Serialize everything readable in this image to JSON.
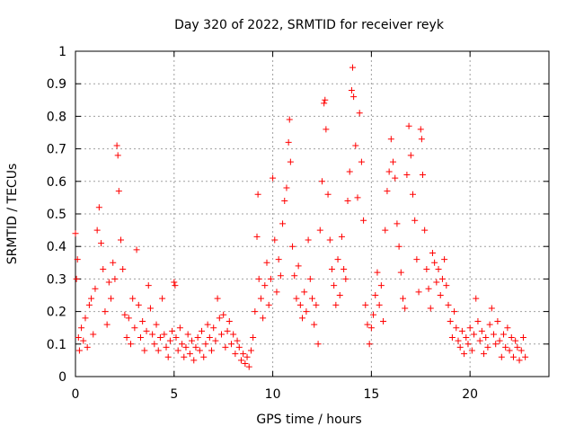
{
  "chart_data": {
    "type": "scatter",
    "title": "Day 320 of 2022, SRMTID for receiver reyk",
    "xlabel": "GPS time / hours",
    "ylabel": "SRMTID / TECUs",
    "xlim": [
      0,
      24
    ],
    "ylim": [
      0,
      1
    ],
    "xticks": [
      0,
      5,
      10,
      15,
      20
    ],
    "xtick_labels": [
      "0",
      "5",
      "10",
      "15",
      "20"
    ],
    "yticks": [
      0,
      0.1,
      0.2,
      0.3,
      0.4,
      0.5,
      0.6,
      0.7,
      0.8,
      0.9,
      1
    ],
    "ytick_labels": [
      "0",
      "0.1",
      "0.2",
      "0.3",
      "0.4",
      "0.5",
      "0.6",
      "0.7",
      "0.8",
      "0.9",
      "1"
    ],
    "grid": true,
    "marker": "+",
    "color": "#ff0000",
    "series": [
      {
        "name": "SRMTID",
        "points": [
          [
            0.0,
            0.44
          ],
          [
            0.05,
            0.3
          ],
          [
            0.1,
            0.36
          ],
          [
            0.15,
            0.12
          ],
          [
            0.2,
            0.08
          ],
          [
            0.3,
            0.15
          ],
          [
            0.4,
            0.11
          ],
          [
            0.5,
            0.18
          ],
          [
            0.6,
            0.09
          ],
          [
            0.7,
            0.22
          ],
          [
            0.8,
            0.24
          ],
          [
            0.9,
            0.13
          ],
          [
            1.0,
            0.27
          ],
          [
            1.1,
            0.45
          ],
          [
            1.2,
            0.52
          ],
          [
            1.3,
            0.41
          ],
          [
            1.4,
            0.33
          ],
          [
            1.5,
            0.2
          ],
          [
            1.6,
            0.16
          ],
          [
            1.7,
            0.29
          ],
          [
            1.8,
            0.24
          ],
          [
            1.9,
            0.35
          ],
          [
            2.0,
            0.3
          ],
          [
            2.1,
            0.71
          ],
          [
            2.15,
            0.68
          ],
          [
            2.2,
            0.57
          ],
          [
            2.3,
            0.42
          ],
          [
            2.4,
            0.33
          ],
          [
            2.5,
            0.19
          ],
          [
            2.6,
            0.12
          ],
          [
            2.7,
            0.18
          ],
          [
            2.8,
            0.1
          ],
          [
            2.9,
            0.24
          ],
          [
            3.0,
            0.15
          ],
          [
            3.1,
            0.39
          ],
          [
            3.2,
            0.22
          ],
          [
            3.3,
            0.12
          ],
          [
            3.4,
            0.17
          ],
          [
            3.5,
            0.08
          ],
          [
            3.6,
            0.14
          ],
          [
            3.7,
            0.28
          ],
          [
            3.8,
            0.21
          ],
          [
            3.9,
            0.13
          ],
          [
            4.0,
            0.1
          ],
          [
            4.1,
            0.16
          ],
          [
            4.2,
            0.08
          ],
          [
            4.3,
            0.12
          ],
          [
            4.4,
            0.24
          ],
          [
            4.5,
            0.13
          ],
          [
            4.6,
            0.09
          ],
          [
            4.7,
            0.06
          ],
          [
            4.8,
            0.11
          ],
          [
            4.9,
            0.14
          ],
          [
            5.0,
            0.29
          ],
          [
            5.05,
            0.28
          ],
          [
            5.1,
            0.12
          ],
          [
            5.2,
            0.08
          ],
          [
            5.3,
            0.15
          ],
          [
            5.4,
            0.1
          ],
          [
            5.5,
            0.06
          ],
          [
            5.6,
            0.09
          ],
          [
            5.7,
            0.13
          ],
          [
            5.8,
            0.07
          ],
          [
            5.9,
            0.11
          ],
          [
            6.0,
            0.05
          ],
          [
            6.1,
            0.09
          ],
          [
            6.2,
            0.12
          ],
          [
            6.3,
            0.08
          ],
          [
            6.4,
            0.14
          ],
          [
            6.5,
            0.06
          ],
          [
            6.6,
            0.1
          ],
          [
            6.7,
            0.16
          ],
          [
            6.8,
            0.12
          ],
          [
            6.9,
            0.08
          ],
          [
            7.0,
            0.15
          ],
          [
            7.1,
            0.11
          ],
          [
            7.2,
            0.24
          ],
          [
            7.3,
            0.18
          ],
          [
            7.4,
            0.13
          ],
          [
            7.5,
            0.19
          ],
          [
            7.6,
            0.09
          ],
          [
            7.7,
            0.14
          ],
          [
            7.8,
            0.17
          ],
          [
            7.9,
            0.1
          ],
          [
            8.0,
            0.13
          ],
          [
            8.1,
            0.07
          ],
          [
            8.2,
            0.11
          ],
          [
            8.3,
            0.09
          ],
          [
            8.4,
            0.05
          ],
          [
            8.5,
            0.07
          ],
          [
            8.6,
            0.04
          ],
          [
            8.7,
            0.06
          ],
          [
            8.8,
            0.03
          ],
          [
            8.9,
            0.08
          ],
          [
            9.0,
            0.12
          ],
          [
            9.1,
            0.2
          ],
          [
            9.2,
            0.43
          ],
          [
            9.25,
            0.56
          ],
          [
            9.3,
            0.3
          ],
          [
            9.4,
            0.24
          ],
          [
            9.5,
            0.18
          ],
          [
            9.6,
            0.28
          ],
          [
            9.7,
            0.35
          ],
          [
            9.8,
            0.22
          ],
          [
            9.9,
            0.3
          ],
          [
            10.0,
            0.61
          ],
          [
            10.1,
            0.42
          ],
          [
            10.2,
            0.26
          ],
          [
            10.3,
            0.36
          ],
          [
            10.4,
            0.31
          ],
          [
            10.5,
            0.47
          ],
          [
            10.6,
            0.54
          ],
          [
            10.7,
            0.58
          ],
          [
            10.8,
            0.72
          ],
          [
            10.85,
            0.79
          ],
          [
            10.9,
            0.66
          ],
          [
            11.0,
            0.4
          ],
          [
            11.1,
            0.31
          ],
          [
            11.2,
            0.24
          ],
          [
            11.3,
            0.34
          ],
          [
            11.4,
            0.22
          ],
          [
            11.5,
            0.18
          ],
          [
            11.6,
            0.26
          ],
          [
            11.7,
            0.2
          ],
          [
            11.8,
            0.42
          ],
          [
            11.9,
            0.3
          ],
          [
            12.0,
            0.24
          ],
          [
            12.1,
            0.16
          ],
          [
            12.2,
            0.22
          ],
          [
            12.3,
            0.1
          ],
          [
            12.4,
            0.45
          ],
          [
            12.5,
            0.6
          ],
          [
            12.6,
            0.84
          ],
          [
            12.65,
            0.85
          ],
          [
            12.7,
            0.76
          ],
          [
            12.8,
            0.56
          ],
          [
            12.9,
            0.42
          ],
          [
            13.0,
            0.33
          ],
          [
            13.1,
            0.28
          ],
          [
            13.2,
            0.22
          ],
          [
            13.3,
            0.36
          ],
          [
            13.4,
            0.25
          ],
          [
            13.5,
            0.43
          ],
          [
            13.6,
            0.33
          ],
          [
            13.7,
            0.3
          ],
          [
            13.8,
            0.54
          ],
          [
            13.9,
            0.63
          ],
          [
            14.0,
            0.88
          ],
          [
            14.05,
            0.95
          ],
          [
            14.1,
            0.86
          ],
          [
            14.2,
            0.71
          ],
          [
            14.3,
            0.55
          ],
          [
            14.4,
            0.81
          ],
          [
            14.5,
            0.66
          ],
          [
            14.6,
            0.48
          ],
          [
            14.7,
            0.22
          ],
          [
            14.8,
            0.16
          ],
          [
            14.9,
            0.1
          ],
          [
            15.0,
            0.15
          ],
          [
            15.1,
            0.19
          ],
          [
            15.2,
            0.25
          ],
          [
            15.3,
            0.32
          ],
          [
            15.4,
            0.22
          ],
          [
            15.5,
            0.28
          ],
          [
            15.6,
            0.17
          ],
          [
            15.7,
            0.45
          ],
          [
            15.8,
            0.57
          ],
          [
            15.9,
            0.63
          ],
          [
            16.0,
            0.73
          ],
          [
            16.1,
            0.66
          ],
          [
            16.2,
            0.61
          ],
          [
            16.3,
            0.47
          ],
          [
            16.4,
            0.4
          ],
          [
            16.5,
            0.32
          ],
          [
            16.6,
            0.24
          ],
          [
            16.7,
            0.21
          ],
          [
            16.8,
            0.62
          ],
          [
            16.9,
            0.77
          ],
          [
            17.0,
            0.68
          ],
          [
            17.1,
            0.56
          ],
          [
            17.2,
            0.48
          ],
          [
            17.3,
            0.36
          ],
          [
            17.4,
            0.26
          ],
          [
            17.5,
            0.76
          ],
          [
            17.55,
            0.73
          ],
          [
            17.6,
            0.62
          ],
          [
            17.7,
            0.45
          ],
          [
            17.8,
            0.33
          ],
          [
            17.9,
            0.27
          ],
          [
            18.0,
            0.21
          ],
          [
            18.1,
            0.38
          ],
          [
            18.2,
            0.35
          ],
          [
            18.3,
            0.29
          ],
          [
            18.4,
            0.33
          ],
          [
            18.5,
            0.25
          ],
          [
            18.6,
            0.3
          ],
          [
            18.7,
            0.36
          ],
          [
            18.8,
            0.28
          ],
          [
            18.9,
            0.22
          ],
          [
            19.0,
            0.17
          ],
          [
            19.1,
            0.12
          ],
          [
            19.2,
            0.2
          ],
          [
            19.3,
            0.15
          ],
          [
            19.4,
            0.11
          ],
          [
            19.5,
            0.09
          ],
          [
            19.6,
            0.14
          ],
          [
            19.7,
            0.07
          ],
          [
            19.8,
            0.12
          ],
          [
            19.9,
            0.1
          ],
          [
            20.0,
            0.15
          ],
          [
            20.1,
            0.08
          ],
          [
            20.2,
            0.13
          ],
          [
            20.3,
            0.24
          ],
          [
            20.4,
            0.17
          ],
          [
            20.5,
            0.11
          ],
          [
            20.6,
            0.14
          ],
          [
            20.7,
            0.07
          ],
          [
            20.8,
            0.12
          ],
          [
            20.9,
            0.09
          ],
          [
            21.0,
            0.16
          ],
          [
            21.1,
            0.21
          ],
          [
            21.2,
            0.13
          ],
          [
            21.3,
            0.1
          ],
          [
            21.4,
            0.17
          ],
          [
            21.5,
            0.11
          ],
          [
            21.6,
            0.06
          ],
          [
            21.7,
            0.13
          ],
          [
            21.8,
            0.09
          ],
          [
            21.9,
            0.15
          ],
          [
            22.0,
            0.08
          ],
          [
            22.1,
            0.12
          ],
          [
            22.2,
            0.06
          ],
          [
            22.3,
            0.11
          ],
          [
            22.4,
            0.09
          ],
          [
            22.5,
            0.05
          ],
          [
            22.6,
            0.08
          ],
          [
            22.7,
            0.12
          ],
          [
            22.8,
            0.06
          ]
        ]
      }
    ]
  }
}
